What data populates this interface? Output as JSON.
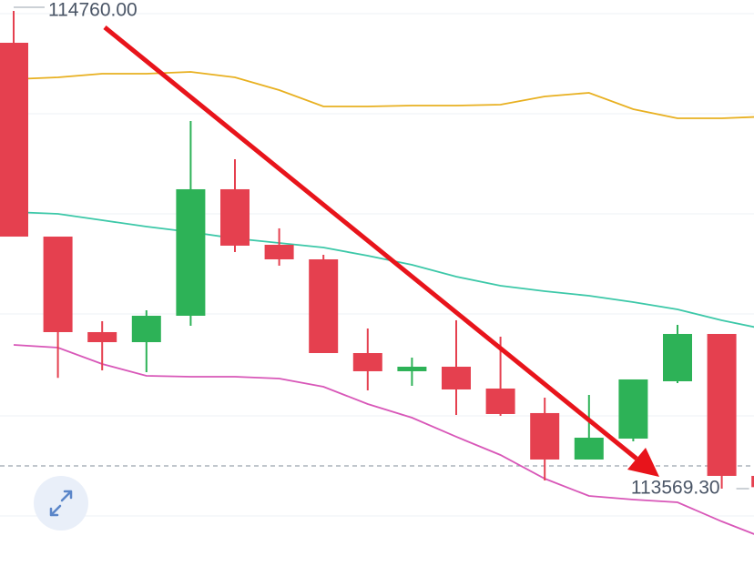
{
  "chart_data": {
    "type": "candlestick",
    "categories": [
      null,
      null,
      null,
      null,
      null,
      null,
      null,
      null,
      null,
      null,
      null,
      null,
      null,
      null,
      null,
      null,
      null,
      null
    ],
    "ylim": [
      113376.5,
      114787.2
    ],
    "up_color": "#2db257",
    "down_color": "#e5404f",
    "candles": {
      "open": [
        114680.6,
        114197.5,
        113959.4,
        113934.4,
        114000.2,
        114315.5,
        114177.1,
        114140.8,
        113907.2,
        113861.9,
        113873.2,
        113818.8,
        113757.6,
        113641.9,
        113694.0,
        113836.9,
        113954.9,
        113601.1
      ],
      "high": [
        114760.0,
        114197.5,
        113986.6,
        114013.8,
        114485.6,
        114390.3,
        114218.0,
        114152.2,
        113968.5,
        113895.9,
        113988.9,
        113948.0,
        113796.1,
        113802.9,
        113841.5,
        113977.5,
        113954.9,
        113601.1
      ],
      "low": [
        114197.5,
        113845.4,
        113864.1,
        113859.6,
        113975.3,
        114159.0,
        114125.0,
        113907.2,
        113814.2,
        113825.6,
        113753.0,
        113750.7,
        113589.7,
        113641.9,
        113687.2,
        113832.4,
        113569.3,
        113573.0
      ],
      "close": [
        114197.5,
        113959.4,
        113934.4,
        114000.2,
        114315.5,
        114174.9,
        114140.8,
        113907.2,
        113861.9,
        113873.2,
        113816.5,
        113755.3,
        113641.9,
        113696.3,
        113841.5,
        113954.9,
        113601.1,
        113573.0
      ]
    },
    "lines": [
      {
        "color": "#e8b020",
        "values": [
          114589.9,
          114594.4,
          114603.5,
          114603.5,
          114608.0,
          114594.4,
          114562.7,
          114521.8,
          114521.8,
          114524.1,
          114524.1,
          114526.4,
          114546.8,
          114555.9,
          114515.0,
          114492.4,
          114492.4,
          114496.9
        ]
      },
      {
        "color": "#3cc8a8",
        "values": [
          114258.8,
          114254.2,
          114238.3,
          114222.5,
          114208.9,
          114193.0,
          114181.6,
          114170.3,
          114149.9,
          114127.2,
          114097.7,
          114075.0,
          114061.4,
          114050.1,
          114034.2,
          114016.1,
          113988.9,
          113966.2
        ]
      },
      {
        "color": "#d857b8",
        "values": [
          113927.6,
          113920.8,
          113880.0,
          113850.5,
          113848.2,
          113848.2,
          113843.7,
          113823.3,
          113780.2,
          113746.2,
          113698.6,
          113653.2,
          113594.2,
          113551.1,
          113542.1,
          113535.2,
          113487.6,
          113444.5
        ]
      }
    ],
    "current_price_line": 113626.0,
    "annotations": [
      {
        "text": "114760.00",
        "value": 114760.0,
        "index": 0
      },
      {
        "text": "113569.30",
        "value": 113569.3,
        "index": 16
      }
    ]
  }
}
